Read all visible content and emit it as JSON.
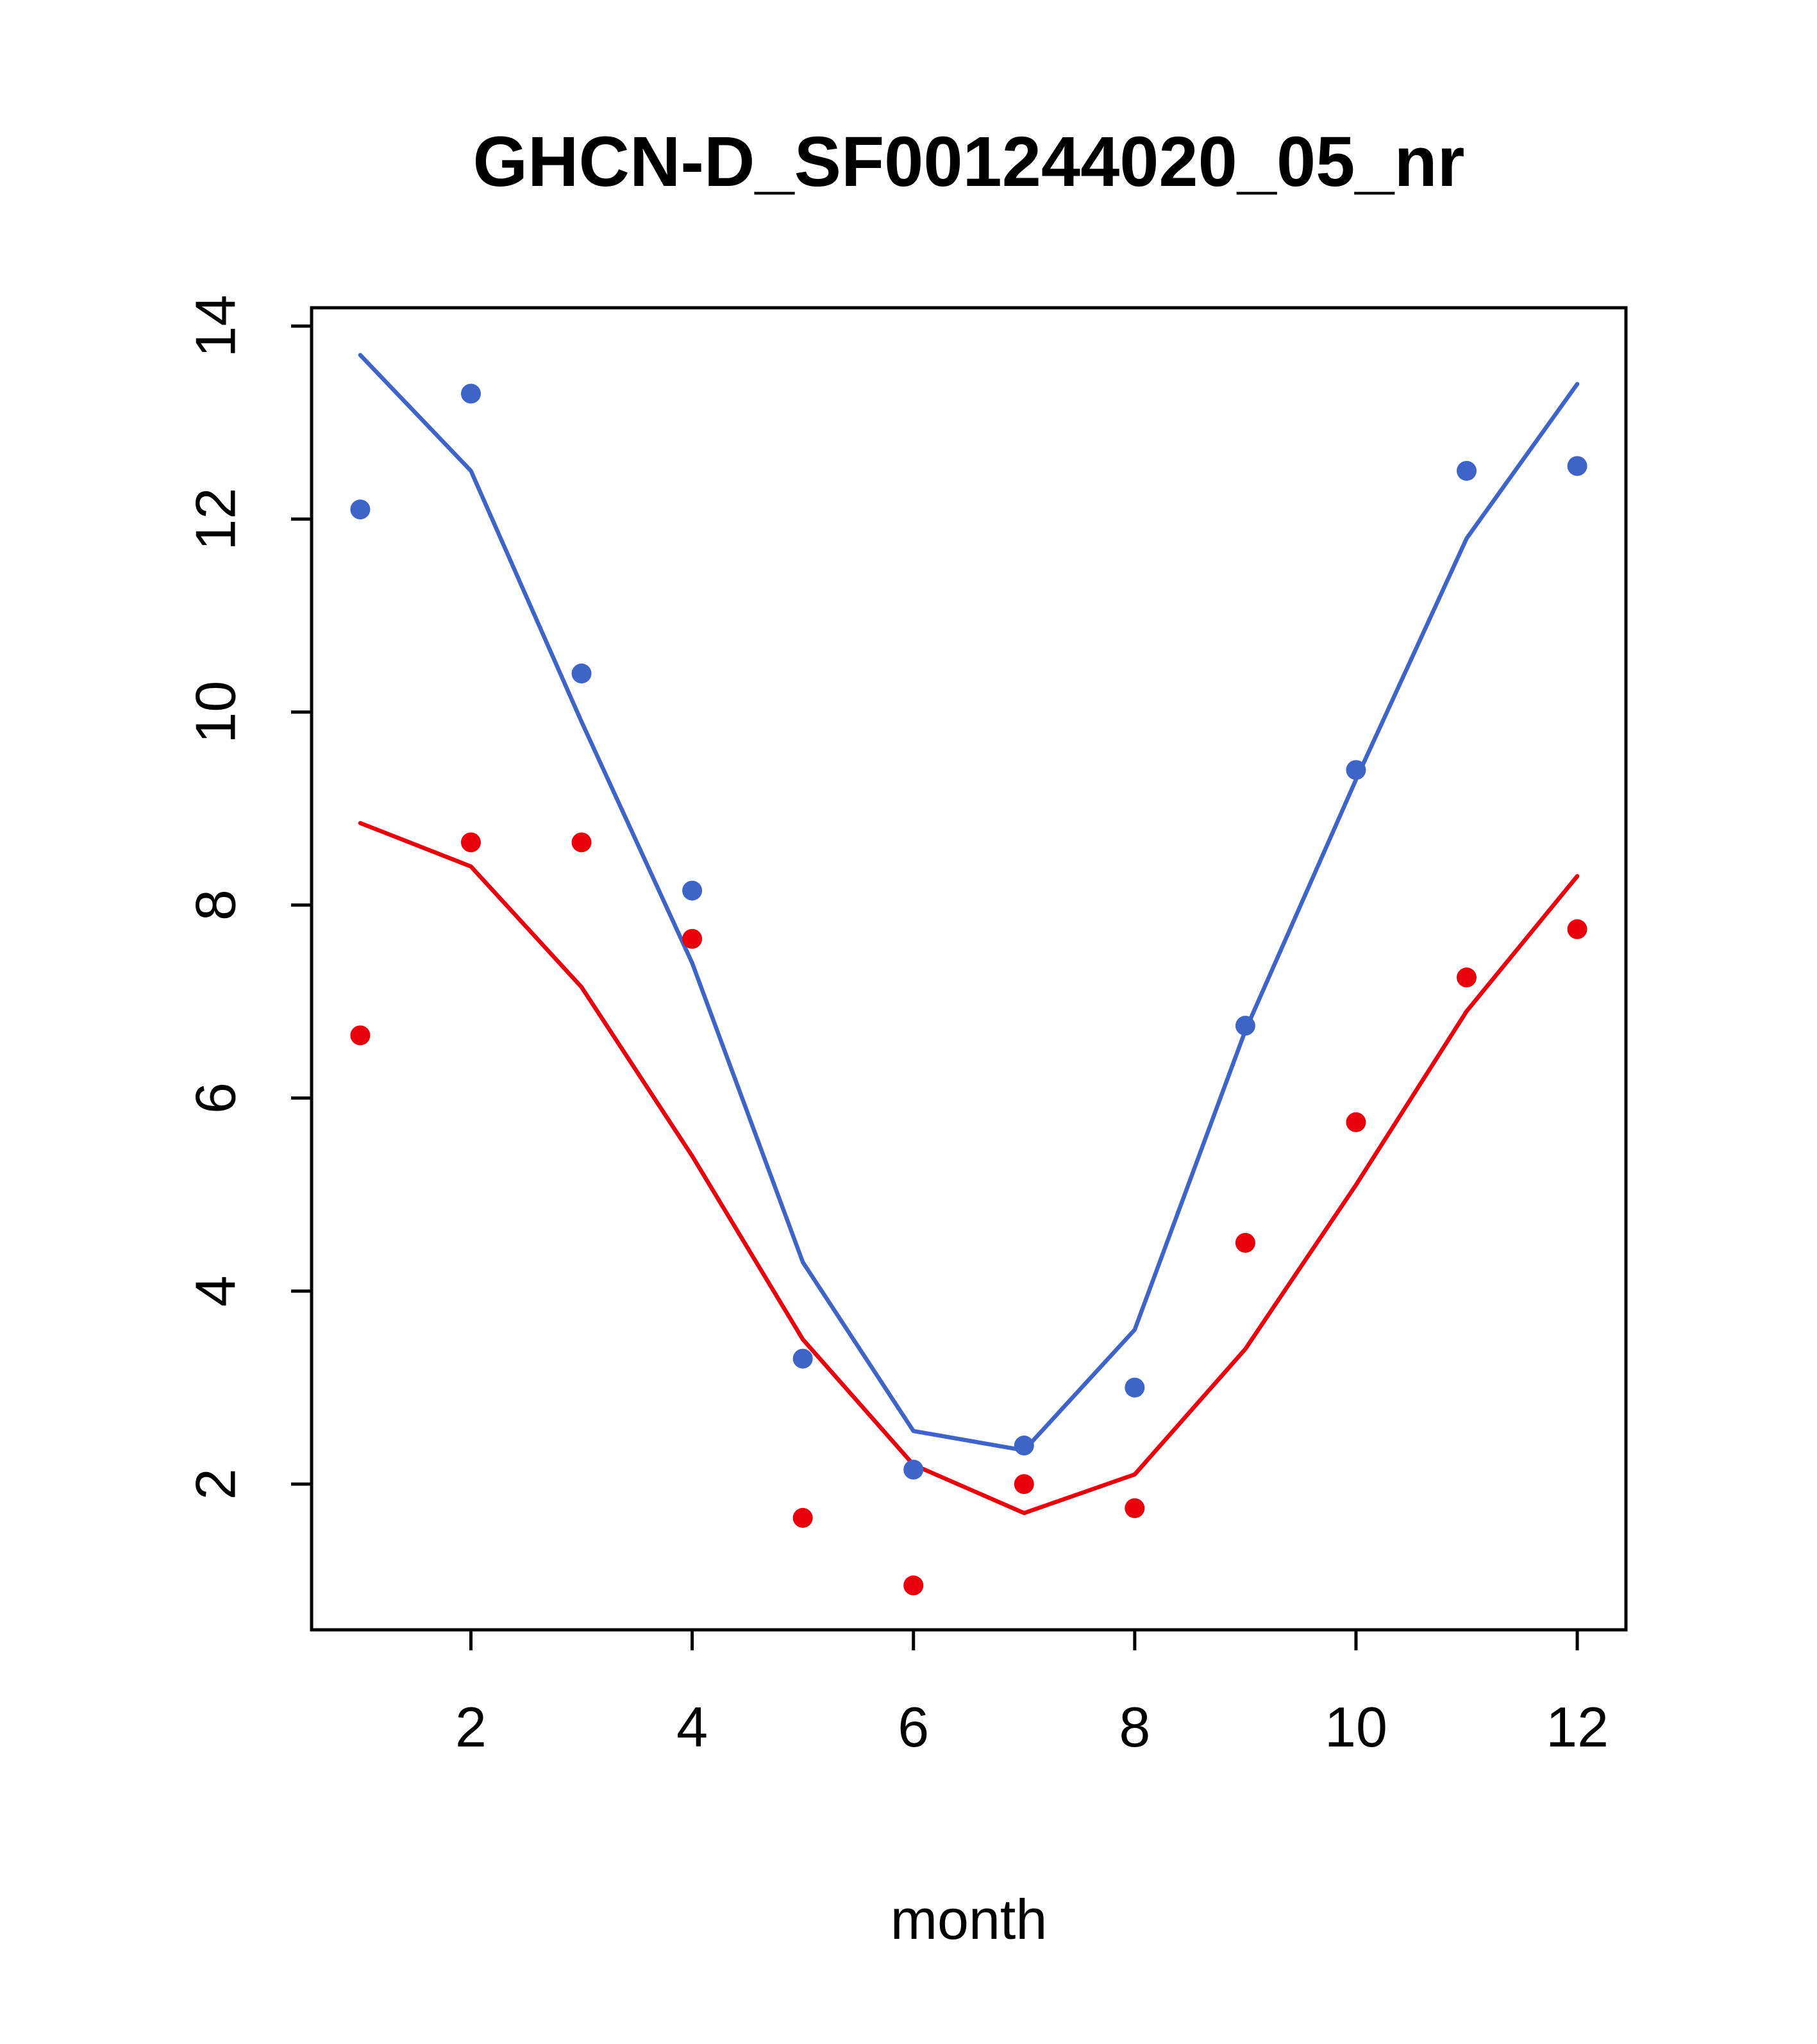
{
  "title": "GHCN-D_SF001244020_05_nr",
  "chart_data": {
    "type": "line",
    "title": "GHCN-D_SF001244020_05_nr",
    "xlabel": "month",
    "ylabel": "",
    "x": [
      1,
      2,
      3,
      4,
      5,
      6,
      7,
      8,
      9,
      10,
      11,
      12
    ],
    "xlim": [
      0.56,
      12.44
    ],
    "ylim": [
      0.49,
      14.19
    ],
    "xticks": [
      2,
      4,
      6,
      8,
      10,
      12
    ],
    "yticks": [
      2,
      4,
      6,
      8,
      10,
      12,
      14
    ],
    "grid": false,
    "legend": "none",
    "series": [
      {
        "name": "blue-line",
        "type": "line",
        "color": "#3E64C8",
        "values": [
          13.7,
          12.5,
          9.9,
          7.4,
          4.3,
          2.55,
          2.35,
          3.6,
          6.7,
          9.3,
          11.8,
          13.4
        ]
      },
      {
        "name": "red-line",
        "type": "line",
        "color": "#E8000D",
        "values": [
          8.85,
          8.4,
          7.15,
          5.4,
          3.5,
          2.2,
          1.7,
          2.1,
          3.4,
          5.1,
          6.9,
          8.3
        ]
      },
      {
        "name": "blue-points",
        "type": "points",
        "color": "#3E64C8",
        "values": [
          12.1,
          13.3,
          10.4,
          8.15,
          3.3,
          2.15,
          2.4,
          3.0,
          6.75,
          9.4,
          12.5,
          12.55
        ]
      },
      {
        "name": "red-points",
        "type": "points",
        "color": "#E8000D",
        "values": [
          6.65,
          8.65,
          8.65,
          7.65,
          1.65,
          0.95,
          2.0,
          1.75,
          4.5,
          5.75,
          7.25,
          7.75
        ]
      }
    ],
    "colors": {
      "axis": "#000000",
      "background": "#FFFFFF",
      "blue": "#3E64C8",
      "red": "#E8000D"
    }
  }
}
